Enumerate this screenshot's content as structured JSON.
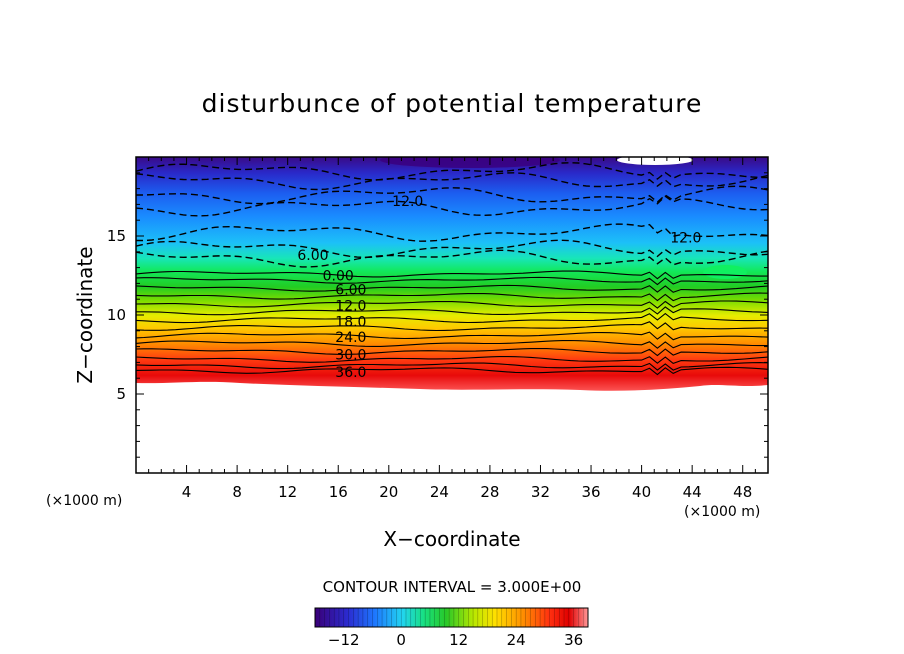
{
  "chart_data": {
    "type": "heatmap",
    "title": "disturbunce of potential temperature",
    "xlabel": "X−coordinate",
    "ylabel": "Z−coordinate",
    "x_unit": "(×1000 m)",
    "y_unit": "(×1000 m)",
    "xlim": [
      0,
      50
    ],
    "ylim": [
      0,
      20
    ],
    "x_ticks": [
      4,
      8,
      12,
      16,
      20,
      24,
      28,
      32,
      36,
      40,
      44,
      48
    ],
    "x_tick_labels": [
      "4",
      "8",
      "12",
      "16",
      "20",
      "24",
      "28",
      "32",
      "36",
      "40",
      "44",
      "48"
    ],
    "y_ticks": [
      5,
      10,
      15
    ],
    "y_tick_labels": [
      "5",
      "10",
      "15"
    ],
    "contour_interval_text": "CONTOUR INTERVAL = 3.000E+00",
    "contour_labels": [
      {
        "text": "12.0",
        "x": 21.5,
        "z": 17.2
      },
      {
        "text": "12.0",
        "x": 43.5,
        "z": 14.9
      },
      {
        "text": "6.00",
        "x": 14.0,
        "z": 13.8
      },
      {
        "text": "0.00",
        "x": 16.0,
        "z": 12.5
      },
      {
        "text": "6.00",
        "x": 17.0,
        "z": 11.6
      },
      {
        "text": "12.0",
        "x": 17.0,
        "z": 10.6
      },
      {
        "text": "18.0",
        "x": 17.0,
        "z": 9.6
      },
      {
        "text": "24.0",
        "x": 17.0,
        "z": 8.6
      },
      {
        "text": "30.0",
        "x": 17.0,
        "z": 7.5
      },
      {
        "text": "36.0",
        "x": 17.0,
        "z": 6.4
      }
    ],
    "dashed_contour_levels_z": [
      19.1,
      18.5,
      17.6,
      16.8,
      15.2,
      14.2,
      13.6
    ],
    "solid_contour_levels_z": [
      12.6,
      12.2,
      11.7,
      11.2,
      10.7,
      10.2,
      9.7,
      9.2,
      8.7,
      8.2,
      7.7,
      7.2,
      6.8,
      6.5
    ],
    "colorbar": {
      "min": -18,
      "max": 39,
      "tick_values": [
        -12,
        0,
        12,
        24,
        36
      ],
      "tick_labels": [
        "−12",
        "0",
        "12",
        "24",
        "36"
      ],
      "colors": [
        "#3a0078",
        "#2b2bd0",
        "#1e78ff",
        "#22d4f0",
        "#18e080",
        "#28c828",
        "#b8e800",
        "#ffe000",
        "#ff9000",
        "#ff3010",
        "#e00000",
        "#ff9898"
      ]
    },
    "grid": false,
    "legend": "colorbar-bottom"
  }
}
